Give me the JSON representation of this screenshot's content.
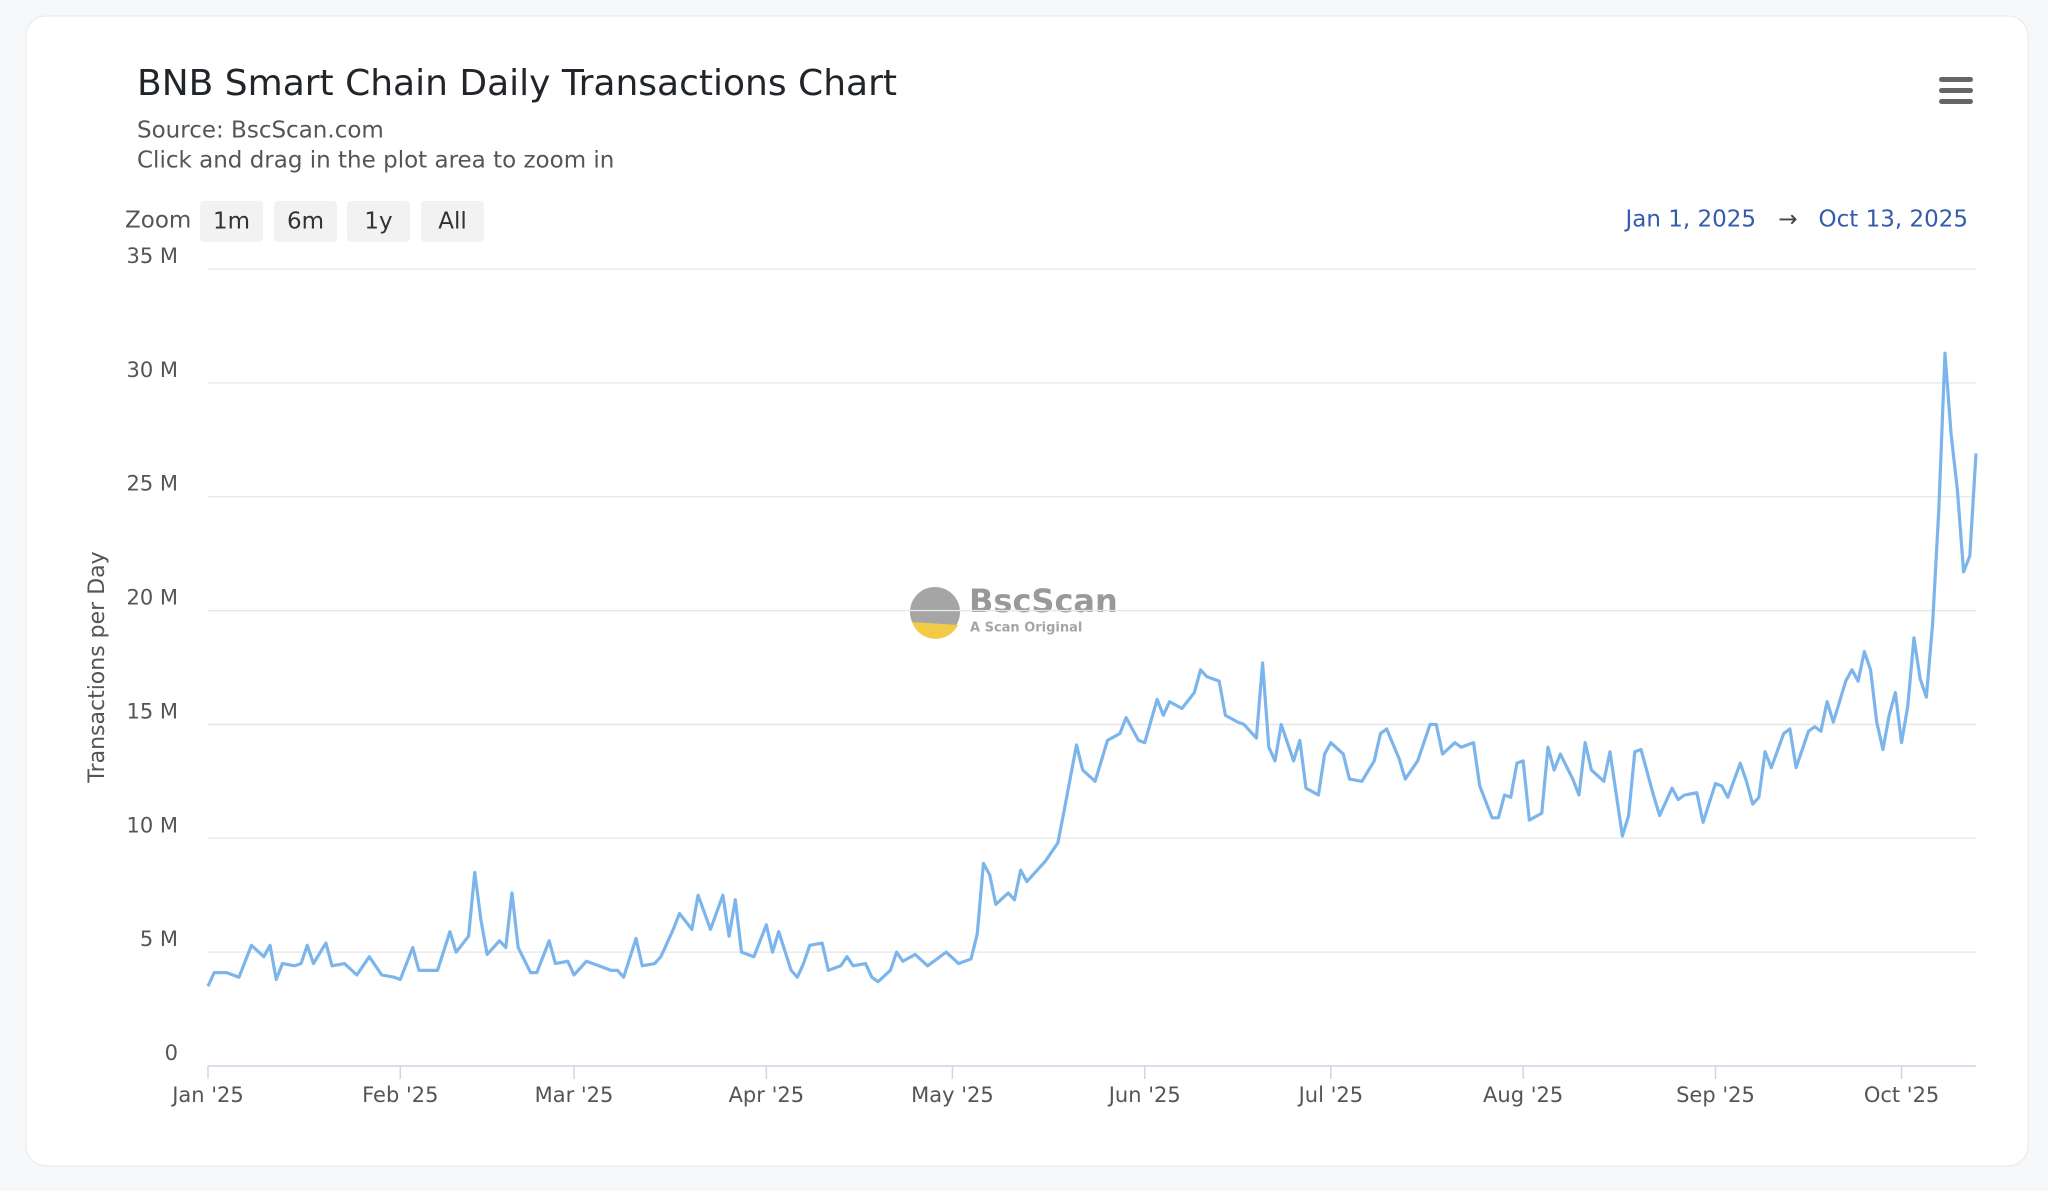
{
  "chart_data": {
    "type": "line",
    "title": "BNB Smart Chain Daily Transactions Chart",
    "source": "Source: BscScan.com",
    "subtitle": "Click and drag in the plot area to zoom in",
    "zoom": {
      "label": "Zoom",
      "buttons": [
        "1m",
        "6m",
        "1y",
        "All"
      ]
    },
    "range": {
      "from": "Jan 1, 2025",
      "separator": "→",
      "to": "Oct 13, 2025"
    },
    "watermark": {
      "name": "BscScan",
      "tagline": "A Scan Original"
    },
    "y_label": "Transactions per Day",
    "color": "#7cb5ec",
    "grid": true,
    "xlim": [
      "2025-01-01",
      "2025-10-13"
    ],
    "xticks": [
      {
        "value": "2025-01-01",
        "label": "Jan '25"
      },
      {
        "value": "2025-02-01",
        "label": "Feb '25"
      },
      {
        "value": "2025-03-01",
        "label": "Mar '25"
      },
      {
        "value": "2025-04-01",
        "label": "Apr '25"
      },
      {
        "value": "2025-05-01",
        "label": "May '25"
      },
      {
        "value": "2025-06-01",
        "label": "Jun '25"
      },
      {
        "value": "2025-07-01",
        "label": "Jul '25"
      },
      {
        "value": "2025-08-01",
        "label": "Aug '25"
      },
      {
        "value": "2025-09-01",
        "label": "Sep '25"
      },
      {
        "value": "2025-10-01",
        "label": "Oct '25"
      }
    ],
    "ylim": [
      0,
      35000000
    ],
    "yticks": [
      0,
      {
        "value": 5000000,
        "label": "5 M"
      },
      {
        "value": 10000000,
        "label": "10 M"
      },
      {
        "value": 15000000,
        "label": "15 M"
      },
      {
        "value": 20000000,
        "label": "20 M"
      },
      {
        "value": 25000000,
        "label": "25 M"
      },
      {
        "value": 30000000,
        "label": "30 M"
      },
      {
        "value": 35000000,
        "label": "35 M"
      }
    ],
    "x": [
      "2025-01-01",
      "2025-01-02",
      "2025-01-04",
      "2025-01-06",
      "2025-01-08",
      "2025-01-10",
      "2025-01-11",
      "2025-01-12",
      "2025-01-13",
      "2025-01-15",
      "2025-01-16",
      "2025-01-17",
      "2025-01-18",
      "2025-01-20",
      "2025-01-21",
      "2025-01-23",
      "2025-01-25",
      "2025-01-27",
      "2025-01-29",
      "2025-01-31",
      "2025-02-01",
      "2025-02-03",
      "2025-02-04",
      "2025-02-07",
      "2025-02-09",
      "2025-02-10",
      "2025-02-12",
      "2025-02-13",
      "2025-02-14",
      "2025-02-15",
      "2025-02-17",
      "2025-02-18",
      "2025-02-19",
      "2025-02-20",
      "2025-02-22",
      "2025-02-23",
      "2025-02-25",
      "2025-02-26",
      "2025-02-28",
      "2025-03-01",
      "2025-03-03",
      "2025-03-05",
      "2025-03-07",
      "2025-03-08",
      "2025-03-09",
      "2025-03-11",
      "2025-03-12",
      "2025-03-14",
      "2025-03-15",
      "2025-03-17",
      "2025-03-18",
      "2025-03-20",
      "2025-03-21",
      "2025-03-23",
      "2025-03-25",
      "2025-03-26",
      "2025-03-27",
      "2025-03-28",
      "2025-03-30",
      "2025-04-01",
      "2025-04-02",
      "2025-04-03",
      "2025-04-05",
      "2025-04-06",
      "2025-04-07",
      "2025-04-08",
      "2025-04-10",
      "2025-04-11",
      "2025-04-13",
      "2025-04-14",
      "2025-04-15",
      "2025-04-17",
      "2025-04-18",
      "2025-04-19",
      "2025-04-21",
      "2025-04-22",
      "2025-04-23",
      "2025-04-25",
      "2025-04-27",
      "2025-04-30",
      "2025-05-02",
      "2025-05-04",
      "2025-05-05",
      "2025-05-06",
      "2025-05-07",
      "2025-05-08",
      "2025-05-10",
      "2025-05-11",
      "2025-05-12",
      "2025-05-13",
      "2025-05-16",
      "2025-05-18",
      "2025-05-19",
      "2025-05-21",
      "2025-05-22",
      "2025-05-24",
      "2025-05-25",
      "2025-05-26",
      "2025-05-28",
      "2025-05-29",
      "2025-05-31",
      "2025-06-01",
      "2025-06-03",
      "2025-06-04",
      "2025-06-05",
      "2025-06-07",
      "2025-06-09",
      "2025-06-10",
      "2025-06-11",
      "2025-06-13",
      "2025-06-14",
      "2025-06-16",
      "2025-06-17",
      "2025-06-19",
      "2025-06-20",
      "2025-06-21",
      "2025-06-22",
      "2025-06-23",
      "2025-06-25",
      "2025-06-26",
      "2025-06-27",
      "2025-06-29",
      "2025-06-30",
      "2025-07-01",
      "2025-07-03",
      "2025-07-04",
      "2025-07-06",
      "2025-07-08",
      "2025-07-09",
      "2025-07-10",
      "2025-07-12",
      "2025-07-13",
      "2025-07-15",
      "2025-07-17",
      "2025-07-18",
      "2025-07-19",
      "2025-07-21",
      "2025-07-22",
      "2025-07-24",
      "2025-07-25",
      "2025-07-27",
      "2025-07-28",
      "2025-07-29",
      "2025-07-30",
      "2025-07-31",
      "2025-08-01",
      "2025-08-02",
      "2025-08-04",
      "2025-08-05",
      "2025-08-06",
      "2025-08-07",
      "2025-08-09",
      "2025-08-10",
      "2025-08-11",
      "2025-08-12",
      "2025-08-14",
      "2025-08-15",
      "2025-08-17",
      "2025-08-18",
      "2025-08-19",
      "2025-08-20",
      "2025-08-22",
      "2025-08-23",
      "2025-08-25",
      "2025-08-26",
      "2025-08-27",
      "2025-08-29",
      "2025-08-30",
      "2025-09-01",
      "2025-09-02",
      "2025-09-03",
      "2025-09-05",
      "2025-09-06",
      "2025-09-07",
      "2025-09-08",
      "2025-09-09",
      "2025-09-10",
      "2025-09-12",
      "2025-09-13",
      "2025-09-14",
      "2025-09-16",
      "2025-09-17",
      "2025-09-18",
      "2025-09-19",
      "2025-09-20",
      "2025-09-22",
      "2025-09-23",
      "2025-09-24",
      "2025-09-25",
      "2025-09-26",
      "2025-09-27",
      "2025-09-28",
      "2025-09-29",
      "2025-09-30",
      "2025-10-01",
      "2025-10-02",
      "2025-10-03",
      "2025-10-04",
      "2025-10-05",
      "2025-10-06",
      "2025-10-07",
      "2025-10-08",
      "2025-10-09",
      "2025-10-10",
      "2025-10-11",
      "2025-10-12",
      "2025-10-13"
    ],
    "values": [
      3500000,
      4100000,
      4100000,
      3900000,
      5300000,
      4800000,
      5300000,
      3800000,
      4500000,
      4400000,
      4500000,
      5300000,
      4500000,
      5400000,
      4400000,
      4500000,
      4000000,
      4800000,
      4000000,
      3900000,
      3800000,
      5200000,
      4200000,
      4200000,
      5900000,
      5000000,
      5700000,
      8500000,
      6400000,
      4900000,
      5500000,
      5200000,
      7600000,
      5200000,
      4100000,
      4100000,
      5500000,
      4500000,
      4600000,
      4000000,
      4600000,
      4400000,
      4200000,
      4200000,
      3900000,
      5600000,
      4400000,
      4500000,
      4800000,
      6000000,
      6700000,
      6000000,
      7500000,
      6000000,
      7500000,
      5700000,
      7300000,
      5000000,
      4800000,
      6200000,
      5000000,
      5900000,
      4200000,
      3900000,
      4500000,
      5300000,
      5400000,
      4200000,
      4400000,
      4800000,
      4400000,
      4500000,
      3900000,
      3700000,
      4200000,
      5000000,
      4600000,
      4900000,
      4400000,
      5000000,
      4500000,
      4700000,
      5800000,
      8900000,
      8400000,
      7100000,
      7600000,
      7300000,
      8600000,
      8100000,
      9000000,
      9800000,
      11200000,
      14100000,
      13000000,
      12500000,
      13400000,
      14300000,
      14600000,
      15300000,
      14300000,
      14200000,
      16100000,
      15400000,
      16000000,
      15700000,
      16400000,
      17400000,
      17100000,
      16900000,
      15400000,
      15100000,
      15000000,
      14400000,
      17700000,
      14000000,
      13400000,
      15000000,
      13400000,
      14300000,
      12200000,
      11900000,
      13700000,
      14200000,
      13700000,
      12600000,
      12500000,
      13400000,
      14600000,
      14800000,
      13500000,
      12600000,
      13400000,
      15000000,
      15000000,
      13700000,
      14200000,
      14000000,
      14200000,
      12300000,
      10900000,
      10900000,
      11900000,
      11800000,
      13300000,
      13400000,
      10800000,
      11100000,
      14000000,
      13000000,
      13700000,
      12600000,
      11900000,
      14200000,
      13000000,
      12500000,
      13800000,
      10100000,
      11000000,
      13800000,
      13900000,
      11900000,
      11000000,
      12200000,
      11700000,
      11900000,
      12000000,
      10700000,
      12400000,
      12300000,
      11800000,
      13300000,
      12500000,
      11500000,
      11800000,
      13800000,
      13100000,
      14600000,
      14800000,
      13100000,
      14700000,
      14900000,
      14700000,
      16000000,
      15100000,
      16900000,
      17400000,
      16900000,
      18200000,
      17400000,
      15100000,
      13900000,
      15400000,
      16400000,
      14200000,
      15800000,
      18800000,
      17000000,
      16200000,
      19400000,
      24400000,
      31300000,
      27700000,
      25300000,
      21700000,
      22400000,
      26900000
    ]
  }
}
